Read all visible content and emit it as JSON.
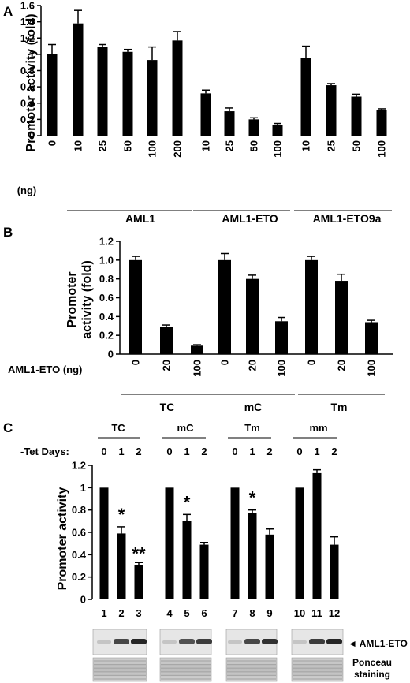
{
  "chart_data": [
    {
      "panel": "A",
      "type": "bar",
      "ylabel": "Promoter activity (fold)",
      "unit_label": "(ng)",
      "ylim": [
        0,
        1.6
      ],
      "yticks": [
        "0",
        "0.2",
        "0.4",
        "0.6",
        "0.8",
        "1",
        "1.2",
        "1.4",
        "1.6"
      ],
      "categories": [
        "0",
        "10",
        "25",
        "50",
        "100",
        "200",
        "10",
        "25",
        "50",
        "100",
        "10",
        "25",
        "50",
        "100"
      ],
      "values": [
        1.0,
        1.38,
        1.09,
        1.03,
        0.93,
        1.17,
        0.52,
        0.3,
        0.2,
        0.13,
        0.96,
        0.62,
        0.48,
        0.32
      ],
      "errors": [
        0.12,
        0.16,
        0.03,
        0.03,
        0.16,
        0.11,
        0.04,
        0.04,
        0.02,
        0.02,
        0.14,
        0.02,
        0.03,
        0.01
      ],
      "groups": [
        "AML1",
        "AML1-ETO",
        "AML1-ETO9a"
      ]
    },
    {
      "panel": "B",
      "type": "bar",
      "ylabel_line1": "Promoter",
      "ylabel_line2": "activity (fold)",
      "xlabel": "AML1-ETO (ng)",
      "ylim": [
        0,
        1.2
      ],
      "yticks": [
        "0",
        "0.2",
        "0.4",
        "0.6",
        "0.8",
        "1.0",
        "1.2"
      ],
      "categories": [
        "0",
        "20",
        "100",
        "0",
        "20",
        "100",
        "0",
        "20",
        "100"
      ],
      "values": [
        1.0,
        0.29,
        0.09,
        1.0,
        0.8,
        0.35,
        1.0,
        0.78,
        0.34
      ],
      "errors": [
        0.04,
        0.02,
        0.01,
        0.07,
        0.04,
        0.04,
        0.04,
        0.07,
        0.02
      ],
      "groups": [
        "TC",
        "mC",
        "Tm"
      ]
    },
    {
      "panel": "C",
      "type": "bar",
      "ylabel": "Promoter activity",
      "days_label": "-Tet Days:",
      "ylim": [
        0,
        1.2
      ],
      "yticks": [
        "0",
        "0.2",
        "0.4",
        "0.6",
        "0.8",
        "1",
        "1.2"
      ],
      "groups": [
        "TC",
        "mC",
        "Tm",
        "mm"
      ],
      "day_ticks": [
        "0",
        "1",
        "2"
      ],
      "categories": [
        "1",
        "2",
        "3",
        "4",
        "5",
        "6",
        "7",
        "8",
        "9",
        "10",
        "11",
        "12"
      ],
      "values": [
        1.0,
        0.59,
        0.31,
        1.0,
        0.7,
        0.49,
        1.0,
        0.77,
        0.58,
        1.0,
        1.13,
        0.49
      ],
      "errors": [
        0.0,
        0.06,
        0.02,
        0.0,
        0.06,
        0.02,
        0.0,
        0.03,
        0.05,
        0.0,
        0.03,
        0.07
      ],
      "annotations": [
        "*",
        "**",
        "*",
        "*"
      ],
      "blot_label": "◄ AML1-ETO",
      "blot_label2_line1": "Ponceau",
      "blot_label2_line2": "staining"
    }
  ],
  "panel_letters": [
    "A",
    "B",
    "C"
  ]
}
